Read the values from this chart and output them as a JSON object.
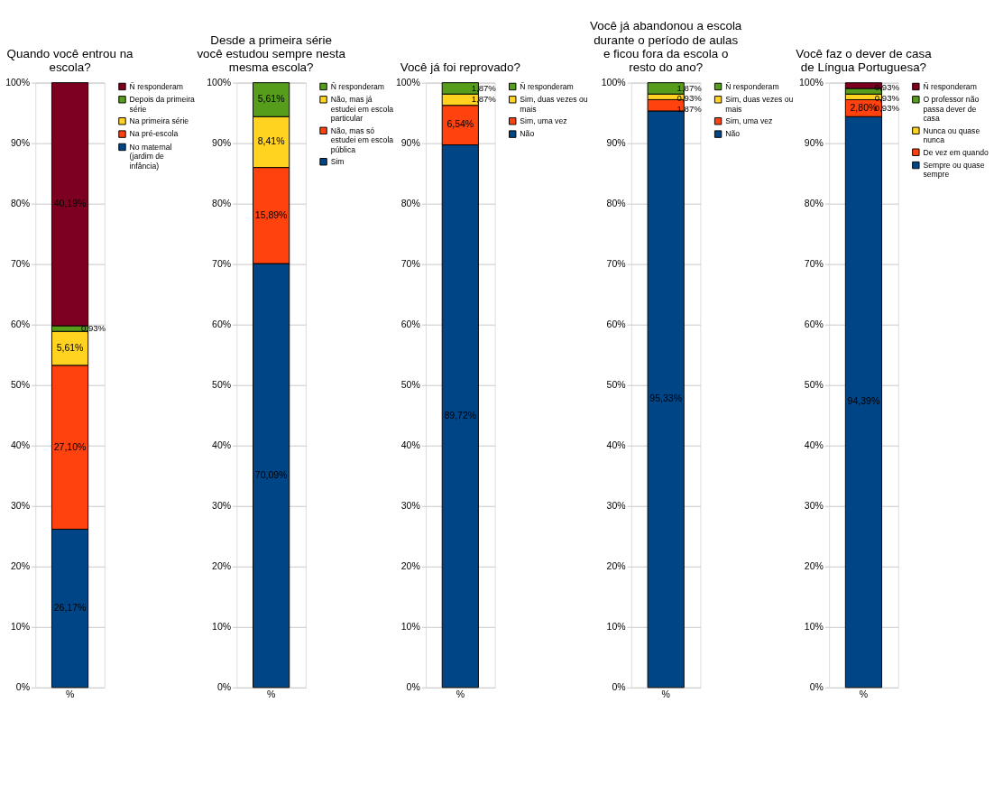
{
  "chart_data": [
    {
      "type": "bar",
      "stacked": true,
      "title": "Quando você entrou na escola?",
      "categories": [
        "%"
      ],
      "ylim": [
        0,
        100
      ],
      "yticks": [
        {
          "value": 0,
          "label": "0%"
        },
        {
          "value": 10,
          "label": "10%"
        },
        {
          "value": 20,
          "label": "20%"
        },
        {
          "value": 30,
          "label": "30%"
        },
        {
          "value": 40,
          "label": "40%"
        },
        {
          "value": 50,
          "label": "50%"
        },
        {
          "value": 60,
          "label": "60%"
        },
        {
          "value": 70,
          "label": "70%"
        },
        {
          "value": 80,
          "label": "80%"
        },
        {
          "value": 90,
          "label": "90%"
        },
        {
          "value": 100,
          "label": "100%"
        }
      ],
      "grid": "y",
      "legend": "right",
      "series": [
        {
          "name": "No maternal (jardim de infância)",
          "color": "#004586",
          "values": [
            26.17
          ],
          "value_labels": [
            "26,17%"
          ]
        },
        {
          "name": "Na pré-escola",
          "color": "#ff420e",
          "values": [
            27.1
          ],
          "value_labels": [
            "27,10%"
          ]
        },
        {
          "name": "Na primeira série",
          "color": "#ffd320",
          "values": [
            5.61
          ],
          "value_labels": [
            "5,61%"
          ]
        },
        {
          "name": "Depois da primeira série",
          "color": "#579d1c",
          "values": [
            0.93
          ],
          "value_labels": [
            "0,93%"
          ]
        },
        {
          "name": "Ñ responderam",
          "color": "#7e0021",
          "values": [
            40.19
          ],
          "value_labels": [
            "40,19%"
          ]
        }
      ]
    },
    {
      "type": "bar",
      "stacked": true,
      "title": "Desde a primeira série você estudou sempre nesta mesma escola?",
      "categories": [
        "%"
      ],
      "ylim": [
        0,
        100
      ],
      "yticks": [
        {
          "value": 0,
          "label": "0%"
        },
        {
          "value": 10,
          "label": "10%"
        },
        {
          "value": 20,
          "label": "20%"
        },
        {
          "value": 30,
          "label": "30%"
        },
        {
          "value": 40,
          "label": "40%"
        },
        {
          "value": 50,
          "label": "50%"
        },
        {
          "value": 60,
          "label": "60%"
        },
        {
          "value": 70,
          "label": "70%"
        },
        {
          "value": 80,
          "label": "80%"
        },
        {
          "value": 90,
          "label": "90%"
        },
        {
          "value": 100,
          "label": "100%"
        }
      ],
      "grid": "y",
      "legend": "right",
      "series": [
        {
          "name": "Sim",
          "color": "#004586",
          "values": [
            70.09
          ],
          "value_labels": [
            "70,09%"
          ]
        },
        {
          "name": "Não, mas só estudei em escola pública",
          "color": "#ff420e",
          "values": [
            15.89
          ],
          "value_labels": [
            "15,89%"
          ]
        },
        {
          "name": "Não, mas já estudei em escola particular",
          "color": "#ffd320",
          "values": [
            8.41
          ],
          "value_labels": [
            "8,41%"
          ]
        },
        {
          "name": "Ñ responderam",
          "color": "#579d1c",
          "values": [
            5.61
          ],
          "value_labels": [
            "5,61%"
          ]
        }
      ]
    },
    {
      "type": "bar",
      "stacked": true,
      "title": "Você já foi reprovado?",
      "categories": [
        "%"
      ],
      "ylim": [
        0,
        100
      ],
      "yticks": [
        {
          "value": 0,
          "label": "0%"
        },
        {
          "value": 10,
          "label": "10%"
        },
        {
          "value": 20,
          "label": "20%"
        },
        {
          "value": 30,
          "label": "30%"
        },
        {
          "value": 40,
          "label": "40%"
        },
        {
          "value": 50,
          "label": "50%"
        },
        {
          "value": 60,
          "label": "60%"
        },
        {
          "value": 70,
          "label": "70%"
        },
        {
          "value": 80,
          "label": "80%"
        },
        {
          "value": 90,
          "label": "90%"
        },
        {
          "value": 100,
          "label": "100%"
        }
      ],
      "grid": "y",
      "legend": "right",
      "series": [
        {
          "name": "Não",
          "color": "#004586",
          "values": [
            89.72
          ],
          "value_labels": [
            "89,72%"
          ]
        },
        {
          "name": "Sim, uma vez",
          "color": "#ff420e",
          "values": [
            6.54
          ],
          "value_labels": [
            "6,54%"
          ]
        },
        {
          "name": "Sim, duas vezes ou mais",
          "color": "#ffd320",
          "values": [
            1.87
          ],
          "value_labels": [
            "1,87%"
          ]
        },
        {
          "name": "Ñ responderam",
          "color": "#579d1c",
          "values": [
            1.87
          ],
          "value_labels": [
            "1,87%"
          ]
        }
      ]
    },
    {
      "type": "bar",
      "stacked": true,
      "title": "Você já abandonou a escola durante o período de aulas e ficou fora da escola o resto do ano?",
      "categories": [
        "%"
      ],
      "ylim": [
        0,
        100
      ],
      "yticks": [
        {
          "value": 0,
          "label": "0%"
        },
        {
          "value": 10,
          "label": "10%"
        },
        {
          "value": 20,
          "label": "20%"
        },
        {
          "value": 30,
          "label": "30%"
        },
        {
          "value": 40,
          "label": "40%"
        },
        {
          "value": 50,
          "label": "50%"
        },
        {
          "value": 60,
          "label": "60%"
        },
        {
          "value": 70,
          "label": "70%"
        },
        {
          "value": 80,
          "label": "80%"
        },
        {
          "value": 90,
          "label": "90%"
        },
        {
          "value": 100,
          "label": "100%"
        }
      ],
      "grid": "y",
      "legend": "right",
      "series": [
        {
          "name": "Não",
          "color": "#004586",
          "values": [
            95.33
          ],
          "value_labels": [
            "95,33%"
          ]
        },
        {
          "name": "Sim, uma vez",
          "color": "#ff420e",
          "values": [
            1.87
          ],
          "value_labels": [
            "1,87%"
          ]
        },
        {
          "name": "Sim, duas vezes ou mais",
          "color": "#ffd320",
          "values": [
            0.93
          ],
          "value_labels": [
            "0,93%"
          ]
        },
        {
          "name": "Ñ responderam",
          "color": "#579d1c",
          "values": [
            1.87
          ],
          "value_labels": [
            "1,87%"
          ]
        }
      ]
    },
    {
      "type": "bar",
      "stacked": true,
      "title": "Você faz o dever de casa de Língua Portuguesa?",
      "categories": [
        "%"
      ],
      "ylim": [
        0,
        100
      ],
      "yticks": [
        {
          "value": 0,
          "label": "0%"
        },
        {
          "value": 10,
          "label": "10%"
        },
        {
          "value": 20,
          "label": "20%"
        },
        {
          "value": 30,
          "label": "30%"
        },
        {
          "value": 40,
          "label": "40%"
        },
        {
          "value": 50,
          "label": "50%"
        },
        {
          "value": 60,
          "label": "60%"
        },
        {
          "value": 70,
          "label": "70%"
        },
        {
          "value": 80,
          "label": "80%"
        },
        {
          "value": 90,
          "label": "90%"
        },
        {
          "value": 100,
          "label": "100%"
        }
      ],
      "grid": "y",
      "legend": "right",
      "series": [
        {
          "name": "Sempre ou quase sempre",
          "color": "#004586",
          "values": [
            94.39
          ],
          "value_labels": [
            "94,39%"
          ]
        },
        {
          "name": "De vez em quando",
          "color": "#ff420e",
          "values": [
            2.8
          ],
          "value_labels": [
            "2,80%"
          ]
        },
        {
          "name": "Nunca ou quase nunca",
          "color": "#ffd320",
          "values": [
            0.93
          ],
          "value_labels": [
            "0,93%"
          ]
        },
        {
          "name": "O professor não passa dever de casa",
          "color": "#579d1c",
          "values": [
            0.93
          ],
          "value_labels": [
            "0,93%"
          ]
        },
        {
          "name": "Ñ responderam",
          "color": "#7e0021",
          "values": [
            0.93
          ],
          "value_labels": [
            "0,93%"
          ]
        }
      ]
    }
  ]
}
